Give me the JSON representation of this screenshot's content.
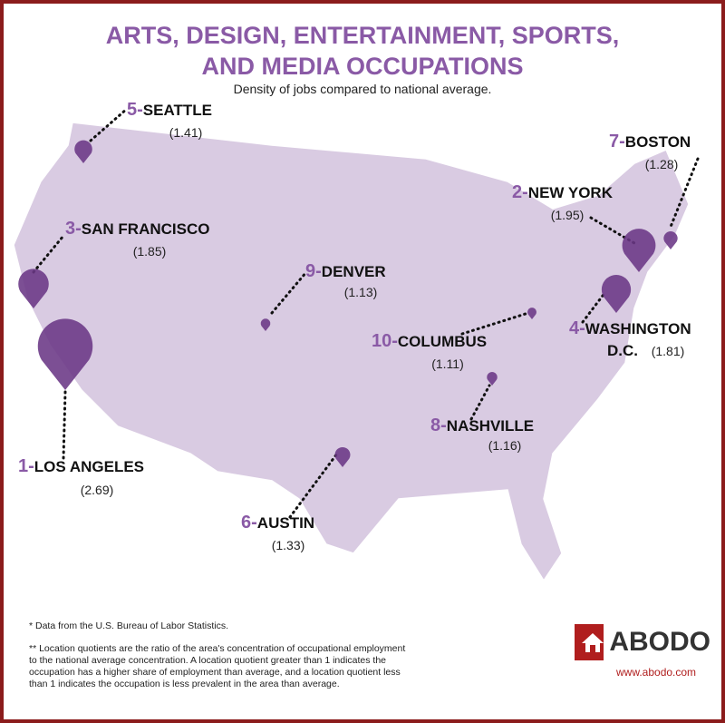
{
  "header": {
    "title_line1": "ARTS, DESIGN, ENTERTAINMENT, SPORTS,",
    "title_line2": "AND MEDIA OCCUPATIONS",
    "subtitle": "Density of jobs compared to national average."
  },
  "cities": [
    {
      "rank": "1-",
      "name": "LOS ANGELES",
      "value": 2.69,
      "value_label": "(2.69)"
    },
    {
      "rank": "2-",
      "name": "NEW YORK",
      "value": 1.95,
      "value_label": "(1.95)"
    },
    {
      "rank": "3-",
      "name": "SAN FRANCISCO",
      "value": 1.85,
      "value_label": "(1.85)"
    },
    {
      "rank": "4-",
      "name": "WASHINGTON",
      "name2": "D.C.",
      "value": 1.81,
      "value_label": "(1.81)"
    },
    {
      "rank": "5-",
      "name": "SEATTLE",
      "value": 1.41,
      "value_label": "(1.41)"
    },
    {
      "rank": "6-",
      "name": "AUSTIN",
      "value": 1.33,
      "value_label": "(1.33)"
    },
    {
      "rank": "7-",
      "name": "BOSTON",
      "value": 1.28,
      "value_label": "(1.28)"
    },
    {
      "rank": "8-",
      "name": "NASHVILLE",
      "value": 1.16,
      "value_label": "(1.16)"
    },
    {
      "rank": "9-",
      "name": "DENVER",
      "value": 1.13,
      "value_label": "(1.13)"
    },
    {
      "rank": "10-",
      "name": "COLUMBUS",
      "value": 1.11,
      "value_label": "(1.11)"
    }
  ],
  "notes": [
    "* Data from the U.S. Bureau of Labor Statistics.",
    "** Location quotients are the ratio of the area's concentration of occupational employment to the national average concentration. A location quotient greater than 1 indicates the occupation has a higher share of employment than average, and a location quotient less than 1 indicates the occupation is less prevalent in the area than average."
  ],
  "brand": {
    "name": "ABODO",
    "url": "www.abodo.com"
  }
}
